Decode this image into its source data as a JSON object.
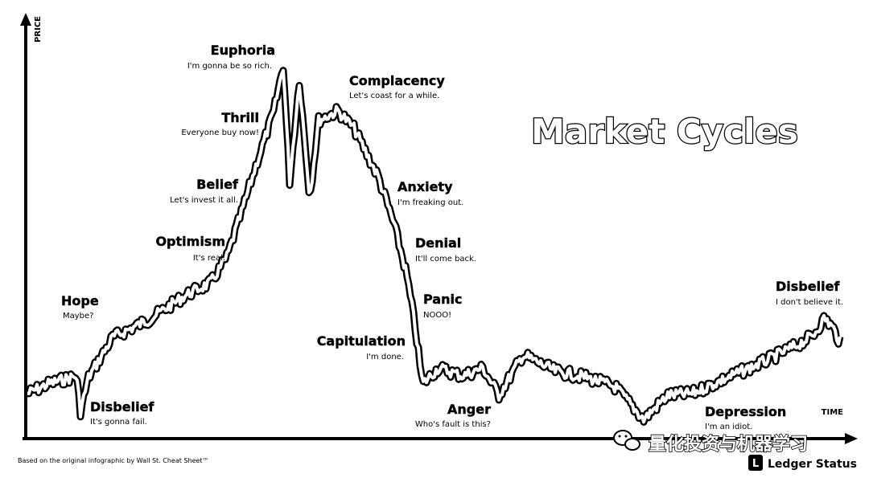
{
  "chart_data": {
    "type": "line",
    "title": "Market Cycles",
    "xlabel": "TIME",
    "ylabel": "PRICE",
    "grid": false,
    "legend": "none",
    "annotations": [
      {
        "key": "hope",
        "title": "Hope",
        "quote": "Maybe?"
      },
      {
        "key": "disbelief1",
        "title": "Disbelief",
        "quote": "It's gonna fail."
      },
      {
        "key": "optimism",
        "title": "Optimism",
        "quote": "It's real."
      },
      {
        "key": "belief",
        "title": "Belief",
        "quote": "Let's invest it all."
      },
      {
        "key": "thrill",
        "title": "Thrill",
        "quote": "Everyone buy now!"
      },
      {
        "key": "euphoria",
        "title": "Euphoria",
        "quote": "I'm gonna be so rich."
      },
      {
        "key": "complacency",
        "title": "Complacency",
        "quote": "Let's coast for a while."
      },
      {
        "key": "anxiety",
        "title": "Anxiety",
        "quote": "I'm freaking out."
      },
      {
        "key": "denial",
        "title": "Denial",
        "quote": "It'll come back."
      },
      {
        "key": "panic",
        "title": "Panic",
        "quote": "NOOO!"
      },
      {
        "key": "capitulation",
        "title": "Capitulation",
        "quote": "I'm done."
      },
      {
        "key": "anger",
        "title": "Anger",
        "quote": "Who's fault is this?"
      },
      {
        "key": "depression",
        "title": "Depression",
        "quote": "I'm an idiot."
      },
      {
        "key": "disbelief2",
        "title": "Disbelief",
        "quote": "I don't believe it."
      }
    ]
  },
  "footer": {
    "credit": "Based on the original infographic by Wall St. Cheat Sheet™",
    "brand": "Ledger Status",
    "watermark": "量化投资与机器学习"
  }
}
